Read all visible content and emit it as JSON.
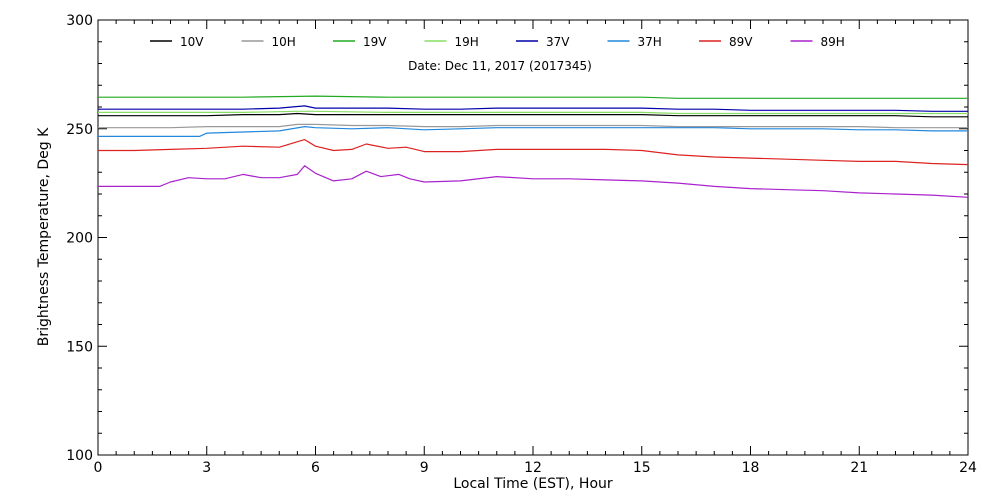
{
  "chart_data": {
    "type": "line",
    "title": "Date: Dec 11, 2017 (2017345)",
    "xlabel": "Local Time (EST), Hour",
    "ylabel": "Brightness Temperature, Deg K",
    "xlim": [
      0,
      24
    ],
    "ylim": [
      100,
      300
    ],
    "xticks": [
      0,
      3,
      6,
      9,
      12,
      15,
      18,
      21,
      24
    ],
    "yticks": [
      100,
      150,
      200,
      250,
      300
    ],
    "grid": false,
    "legend_position": "top",
    "series": [
      {
        "name": "10V",
        "color": "#000000",
        "x": [
          0,
          1,
          2,
          3,
          4,
          5,
          5.5,
          6,
          7,
          8,
          9,
          10,
          11,
          12,
          13,
          14,
          15,
          16,
          17,
          18,
          19,
          20,
          21,
          22,
          23,
          24
        ],
        "y": [
          256,
          256,
          256,
          256,
          256.5,
          256.5,
          257,
          256.5,
          256.5,
          256.5,
          256.5,
          256.5,
          256.5,
          256.5,
          256.5,
          256.5,
          256.5,
          256,
          256,
          256,
          256,
          256,
          256,
          256,
          255.5,
          255.5
        ]
      },
      {
        "name": "10H",
        "color": "#999999",
        "x": [
          0,
          1,
          2,
          3,
          4,
          5,
          5.5,
          6,
          7,
          8,
          9,
          10,
          11,
          12,
          13,
          14,
          15,
          16,
          17,
          18,
          19,
          20,
          21,
          22,
          23,
          24
        ],
        "y": [
          250.5,
          250.5,
          250.5,
          251,
          251,
          251,
          252,
          252,
          251.5,
          251.5,
          251,
          251,
          251.5,
          251.5,
          251.5,
          251.5,
          251.5,
          251,
          251,
          251,
          251,
          251,
          251,
          250.5,
          250.5,
          250.5
        ]
      },
      {
        "name": "19V",
        "color": "#22aa22",
        "x": [
          0,
          2,
          4,
          6,
          8,
          10,
          12,
          14,
          15,
          16,
          18,
          20,
          22,
          24
        ],
        "y": [
          264.5,
          264.5,
          264.5,
          265,
          264.5,
          264.5,
          264.5,
          264.5,
          264.5,
          264,
          264,
          264,
          264,
          264
        ]
      },
      {
        "name": "19H",
        "color": "#88dd66",
        "x": [
          0,
          2,
          4,
          5.5,
          6,
          8,
          10,
          12,
          14,
          15,
          16,
          18,
          20,
          22,
          24
        ],
        "y": [
          257.5,
          257.5,
          257.5,
          258,
          258,
          257.5,
          257.5,
          257.5,
          257.5,
          257.5,
          257,
          257,
          257,
          257,
          257
        ]
      },
      {
        "name": "37V",
        "color": "#0000aa",
        "x": [
          0,
          1,
          2,
          3,
          4,
          5,
          5.7,
          6,
          7,
          8,
          9,
          10,
          11,
          12,
          13,
          14,
          15,
          16,
          17,
          18,
          19,
          20,
          21,
          22,
          23,
          24
        ],
        "y": [
          259,
          259,
          259,
          259,
          259,
          259.5,
          260.5,
          259.5,
          259.5,
          259.5,
          259,
          259,
          259.5,
          259.5,
          259.5,
          259.5,
          259.5,
          259,
          259,
          258.5,
          258.5,
          258.5,
          258.5,
          258.5,
          258,
          258
        ]
      },
      {
        "name": "37H",
        "color": "#2288dd",
        "x": [
          0,
          1,
          2,
          2.8,
          3,
          4,
          5,
          5.7,
          6,
          7,
          8,
          9,
          10,
          11,
          12,
          13,
          14,
          15,
          16,
          17,
          18,
          19,
          20,
          21,
          22,
          23,
          24
        ],
        "y": [
          246.5,
          246.5,
          246.5,
          246.5,
          248,
          248.5,
          249,
          251,
          250.5,
          250,
          250.5,
          249.5,
          250,
          250.5,
          250.5,
          250.5,
          250.5,
          250.5,
          250.5,
          250.5,
          250,
          250,
          250,
          249.5,
          249.5,
          249,
          249
        ]
      },
      {
        "name": "89V",
        "color": "#dd2222",
        "x": [
          0,
          1,
          2,
          3,
          4,
          5,
          5.7,
          6,
          6.5,
          7,
          7.4,
          8,
          8.5,
          9,
          10,
          11,
          12,
          13,
          14,
          15,
          16,
          17,
          18,
          19,
          20,
          21,
          22,
          23,
          24
        ],
        "y": [
          240,
          240,
          240.5,
          241,
          242,
          241.5,
          245,
          242,
          240,
          240.5,
          243,
          241,
          241.5,
          239.5,
          239.5,
          240.5,
          240.5,
          240.5,
          240.5,
          240,
          238,
          237,
          236.5,
          236,
          235.5,
          235,
          235,
          234,
          233.5
        ]
      },
      {
        "name": "89H",
        "color": "#aa22cc",
        "x": [
          0,
          1,
          1.7,
          2,
          2.5,
          3,
          3.5,
          4,
          4.5,
          5,
          5.5,
          5.7,
          6,
          6.5,
          7,
          7.4,
          7.8,
          8.3,
          8.6,
          9,
          10,
          11,
          12,
          13,
          14,
          15,
          16,
          17,
          18,
          19,
          20,
          21,
          22,
          23,
          24
        ],
        "y": [
          223.5,
          223.5,
          223.5,
          225.5,
          227.5,
          227,
          227,
          229,
          227.5,
          227.5,
          229,
          233,
          229.5,
          226,
          227,
          230.5,
          228,
          229,
          227,
          225.5,
          226,
          228,
          227,
          227,
          226.5,
          226,
          225,
          223.5,
          222.5,
          222,
          221.5,
          220.5,
          220,
          219.5,
          218.5
        ]
      }
    ]
  }
}
